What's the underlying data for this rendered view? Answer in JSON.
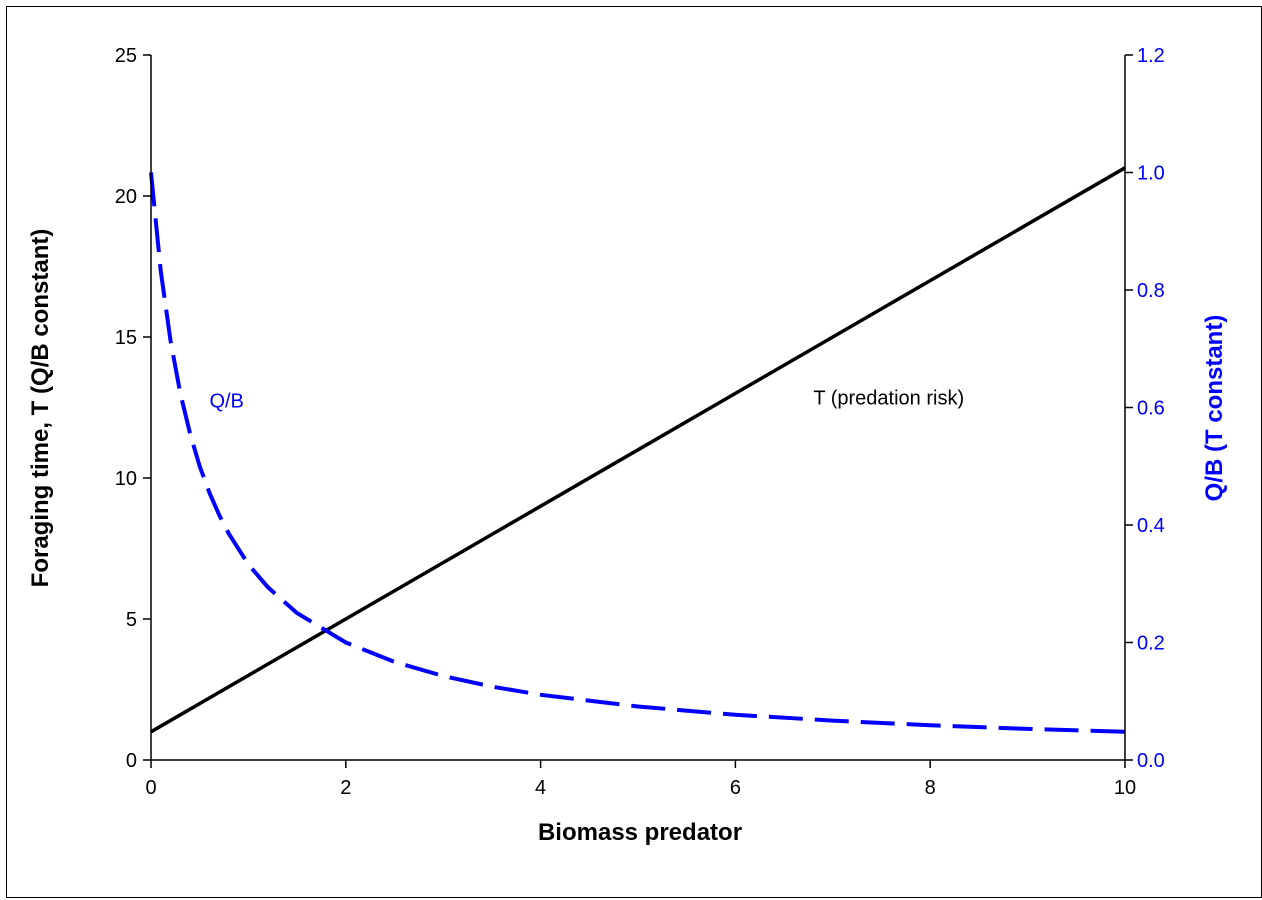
{
  "chart_data": {
    "type": "line",
    "xlabel": "Biomass predator",
    "ylabel": "Foraging time, T (Q/B constant)",
    "y2label": "Q/B (T constant)",
    "xlim": [
      0,
      10
    ],
    "ylim": [
      0,
      25
    ],
    "y2lim": [
      0,
      1.2
    ],
    "x_ticks": [
      "0",
      "2",
      "4",
      "6",
      "8",
      "10"
    ],
    "x_tick_values": [
      0,
      2,
      4,
      6,
      8,
      10
    ],
    "y_ticks": [
      "0",
      "5",
      "10",
      "15",
      "20",
      "25"
    ],
    "y_tick_values": [
      0,
      5,
      10,
      15,
      20,
      25
    ],
    "y2_ticks": [
      "0.0",
      "0.2",
      "0.4",
      "0.6",
      "0.8",
      "1.0",
      "1.2"
    ],
    "y2_tick_values": [
      0,
      0.2,
      0.4,
      0.6,
      0.8,
      1.0,
      1.2
    ],
    "grid": false,
    "legend": "none",
    "series": [
      {
        "axis": "left",
        "color": "#000000",
        "style": "solid",
        "x": [
          0,
          1,
          2,
          3,
          4,
          5,
          6,
          7,
          8,
          9,
          10
        ],
        "values": [
          1,
          3,
          5,
          7,
          9,
          11,
          13,
          15,
          17,
          19,
          21
        ]
      },
      {
        "axis": "right",
        "color": "#0000ff",
        "style": "dashed",
        "x": [
          0,
          0.1,
          0.2,
          0.3,
          0.4,
          0.5,
          0.6,
          0.7,
          0.8,
          1,
          1.2,
          1.5,
          2,
          2.5,
          3,
          3.5,
          4,
          5,
          6,
          7,
          8,
          9,
          10
        ],
        "values": [
          1.0,
          0.833,
          0.714,
          0.625,
          0.556,
          0.5,
          0.455,
          0.417,
          0.385,
          0.333,
          0.294,
          0.25,
          0.2,
          0.167,
          0.143,
          0.125,
          0.111,
          0.091,
          0.077,
          0.067,
          0.059,
          0.053,
          0.048
        ]
      }
    ],
    "annotations": [
      {
        "text": "Q/B",
        "x": 0.6,
        "y2": 0.6,
        "color": "#0000ff"
      },
      {
        "text": "T (predation risk)",
        "x": 6.8,
        "y": 12.6,
        "color": "#000000"
      }
    ],
    "colors": {
      "left_axis": "#000000",
      "right_axis": "#0000ff"
    }
  }
}
